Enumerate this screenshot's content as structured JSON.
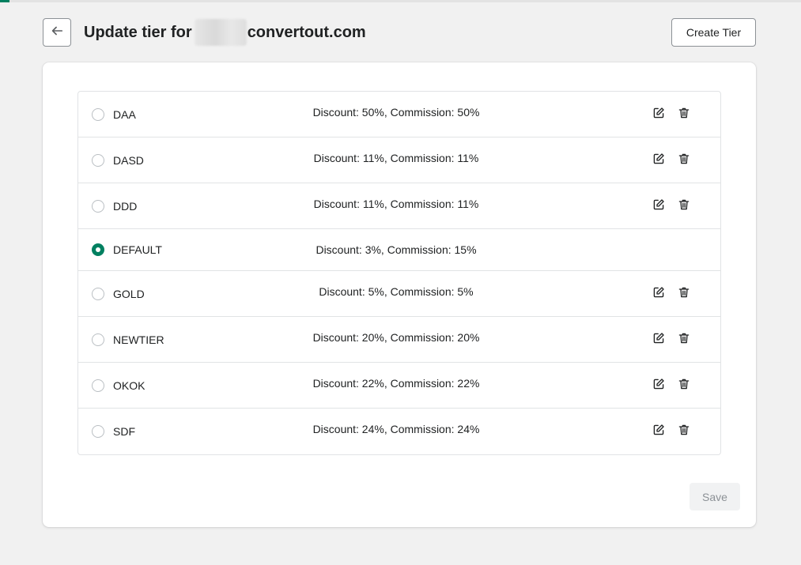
{
  "header": {
    "title_prefix": "Update tier for",
    "title_suffix": "convertout.com",
    "create_label": "Create Tier"
  },
  "tiers": [
    {
      "name": "DAA",
      "detail": "Discount: 50%, Commission: 50%",
      "selected": false,
      "editable": true
    },
    {
      "name": "DASD",
      "detail": "Discount: 11%, Commission: 11%",
      "selected": false,
      "editable": true
    },
    {
      "name": "DDD",
      "detail": "Discount: 11%, Commission: 11%",
      "selected": false,
      "editable": true
    },
    {
      "name": "DEFAULT",
      "detail": "Discount: 3%, Commission: 15%",
      "selected": true,
      "editable": false
    },
    {
      "name": "GOLD",
      "detail": "Discount: 5%, Commission: 5%",
      "selected": false,
      "editable": true
    },
    {
      "name": "NEWTIER",
      "detail": "Discount: 20%, Commission: 20%",
      "selected": false,
      "editable": true
    },
    {
      "name": "OKOK",
      "detail": "Discount: 22%, Commission: 22%",
      "selected": false,
      "editable": true
    },
    {
      "name": "SDF",
      "detail": "Discount: 24%, Commission: 24%",
      "selected": false,
      "editable": true
    }
  ],
  "footer": {
    "save_label": "Save"
  },
  "icons": {
    "back": "arrow-left-icon",
    "edit": "edit-icon",
    "delete": "trash-icon"
  },
  "colors": {
    "accent": "#008060",
    "background": "#f1f1f1",
    "border": "#e1e3e5"
  }
}
